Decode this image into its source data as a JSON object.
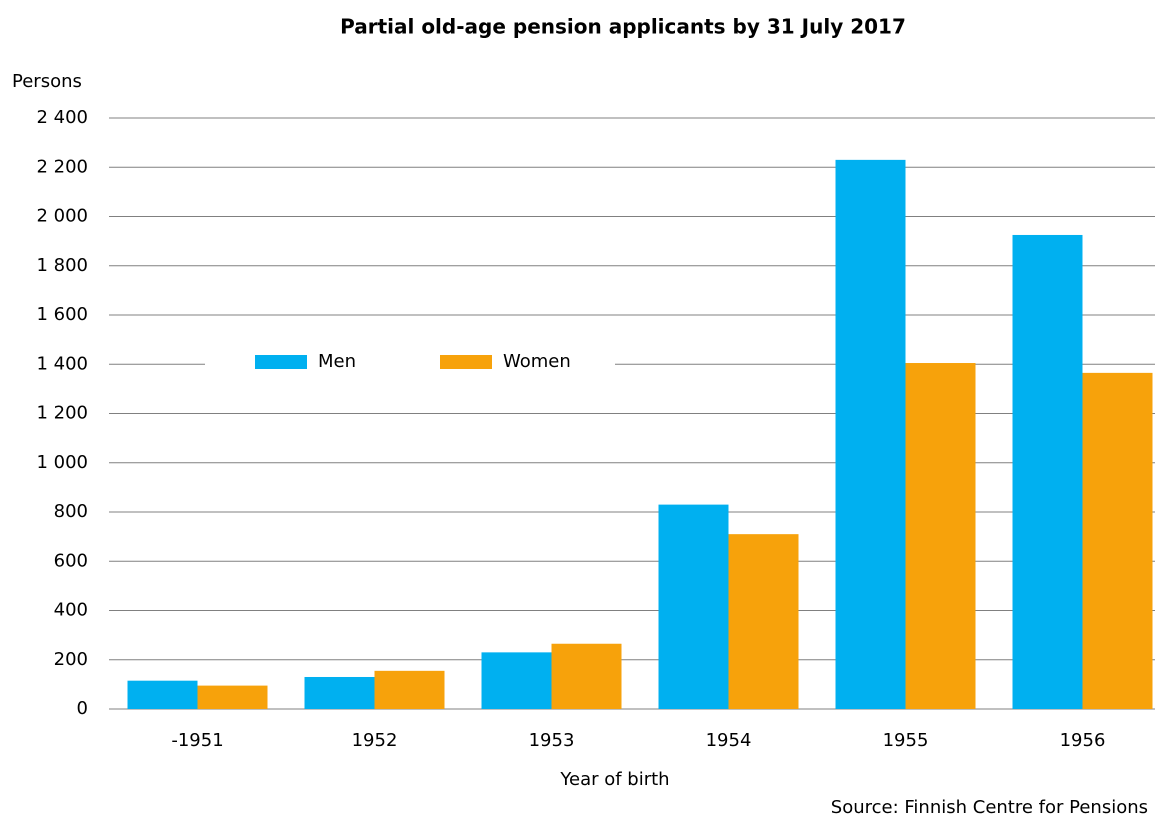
{
  "chart_data": {
    "type": "bar",
    "title": "Partial old-age pension applicants by 31 July 2017",
    "y_label": "Persons",
    "x_label": "Year of birth",
    "source": "Source: Finnish Centre for Pensions",
    "categories": [
      "-1951",
      "1952",
      "1953",
      "1954",
      "1955",
      "1956"
    ],
    "series": [
      {
        "name": "Men",
        "color": "#00b0f0",
        "values": [
          115,
          130,
          230,
          830,
          2230,
          1925
        ]
      },
      {
        "name": "Women",
        "color": "#f7a20b",
        "values": [
          95,
          155,
          265,
          710,
          1405,
          1365
        ]
      }
    ],
    "ylim": [
      0,
      2400
    ],
    "yticks": [
      0,
      200,
      400,
      600,
      800,
      {
        "value": 1000,
        "label": "1 000"
      },
      {
        "value": 1200,
        "label": "1 200"
      },
      {
        "value": 1400,
        "label": "1 400"
      },
      {
        "value": 1600,
        "label": "1 600"
      },
      {
        "value": 1800,
        "label": "1 800"
      },
      {
        "value": 2000,
        "label": "2 000"
      },
      {
        "value": 2200,
        "label": "2 200"
      },
      {
        "value": 2400,
        "label": "2 400"
      }
    ],
    "grid": true,
    "legend": "center"
  }
}
